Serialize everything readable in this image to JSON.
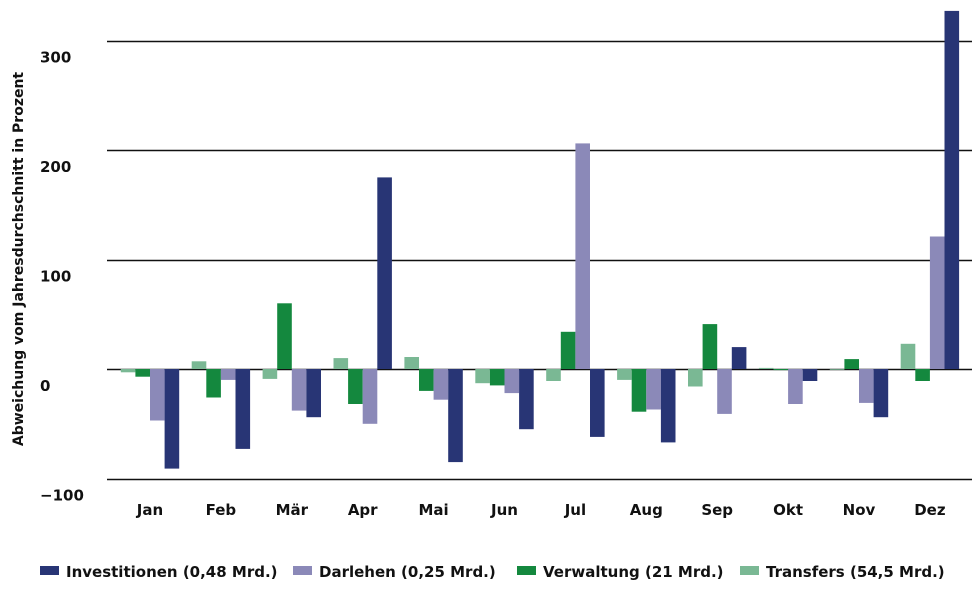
{
  "chart_data": {
    "type": "bar",
    "title": "",
    "xlabel": "",
    "ylabel": "Abweichung vom Jahresdurchschnitt in Prozent",
    "ylim": [
      -100,
      330
    ],
    "yticks": [
      {
        "value": 300,
        "label": "300"
      },
      {
        "value": 200,
        "label": "200"
      },
      {
        "value": 100,
        "label": "100"
      },
      {
        "value": 0,
        "label": "0"
      },
      {
        "value": -100,
        "label": "−100"
      }
    ],
    "grid": true,
    "legend_position": "bottom",
    "categories": [
      "Jan",
      "Feb",
      "Mär",
      "Apr",
      "Mai",
      "Jun",
      "Jul",
      "Aug",
      "Sep",
      "Okt",
      "Nov",
      "Dez"
    ],
    "series": [
      {
        "name": "Transfers (54,5 Mrd.)",
        "color": "#7ab894",
        "values": [
          -3,
          7,
          -9,
          10,
          11,
          -13,
          -11,
          -10,
          -16,
          1,
          0,
          23
        ]
      },
      {
        "name": "Verwaltung (21 Mrd.)",
        "color": "#14883e",
        "values": [
          -7,
          -26,
          60,
          -32,
          -20,
          -15,
          34,
          -39,
          41,
          -1,
          9,
          -11
        ]
      },
      {
        "name": "Darlehen (0,25 Mrd.)",
        "color": "#8b89b8",
        "values": [
          -47,
          -10,
          -38,
          -50,
          -28,
          -22,
          206,
          -37,
          -41,
          -32,
          -31,
          121
        ]
      },
      {
        "name": "Investitionen (0,48 Mrd.)",
        "color": "#283575",
        "values": [
          -91,
          -73,
          -44,
          175,
          -85,
          -55,
          -62,
          -67,
          20,
          -11,
          -44,
          327
        ]
      }
    ],
    "legend_order": [
      "Investitionen (0,48 Mrd.)",
      "Darlehen (0,25 Mrd.)",
      "Verwaltung (21 Mrd.)",
      "Transfers (54,5 Mrd.)"
    ]
  }
}
